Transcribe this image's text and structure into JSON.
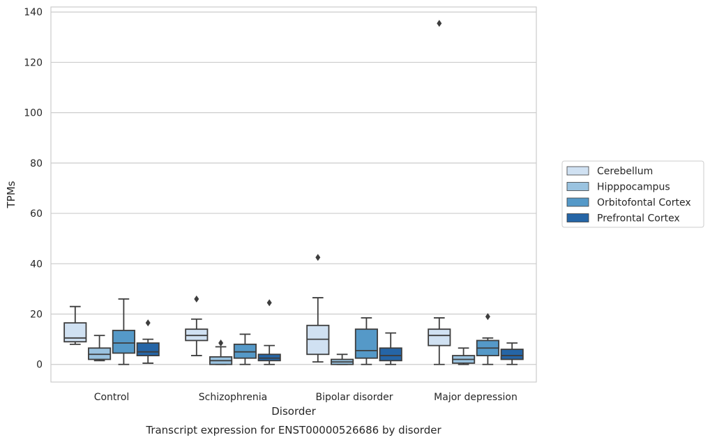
{
  "chart_data": {
    "type": "box",
    "title": "",
    "caption": "Transcript expression for ENST00000526686 by disorder",
    "xlabel": "Disorder",
    "ylabel": "TPMs",
    "ylim": [
      -7,
      142
    ],
    "yticks": [
      0,
      20,
      40,
      60,
      80,
      100,
      120,
      140
    ],
    "grid": "horizontal",
    "legend_position": "right",
    "categories": [
      "Control",
      "Schizophrenia",
      "Bipolar disorder",
      "Major depression"
    ],
    "series": [
      {
        "name": "Cerebellum",
        "color": "#d0e1f2",
        "boxes": [
          {
            "whisker_low": 8,
            "q1": 9,
            "median": 10.5,
            "q3": 16.5,
            "whisker_high": 23,
            "outliers": []
          },
          {
            "whisker_low": 3.5,
            "q1": 9.5,
            "median": 11.5,
            "q3": 14,
            "whisker_high": 18,
            "outliers": [
              26
            ]
          },
          {
            "whisker_low": 1,
            "q1": 4,
            "median": 10,
            "q3": 15.5,
            "whisker_high": 26.5,
            "outliers": [
              42.5
            ]
          },
          {
            "whisker_low": 0,
            "q1": 7.5,
            "median": 11.5,
            "q3": 14,
            "whisker_high": 18.5,
            "outliers": [
              135.5
            ]
          }
        ]
      },
      {
        "name": "Hipppocampus",
        "color": "#9ac3e0",
        "boxes": [
          {
            "whisker_low": 1.5,
            "q1": 2,
            "median": 4,
            "q3": 6.5,
            "whisker_high": 11.5,
            "outliers": []
          },
          {
            "whisker_low": 0,
            "q1": 0,
            "median": 1.5,
            "q3": 3,
            "whisker_high": 7,
            "outliers": [
              8.5
            ]
          },
          {
            "whisker_low": 0,
            "q1": 0,
            "median": 1,
            "q3": 2,
            "whisker_high": 4,
            "outliers": []
          },
          {
            "whisker_low": 0,
            "q1": 0.5,
            "median": 2,
            "q3": 3.5,
            "whisker_high": 6.5,
            "outliers": []
          }
        ]
      },
      {
        "name": "Orbitofontal Cortex",
        "color": "#5599c8",
        "boxes": [
          {
            "whisker_low": 0,
            "q1": 4.5,
            "median": 8.5,
            "q3": 13.5,
            "whisker_high": 26,
            "outliers": []
          },
          {
            "whisker_low": 0,
            "q1": 2.5,
            "median": 5,
            "q3": 8,
            "whisker_high": 12,
            "outliers": []
          },
          {
            "whisker_low": 0,
            "q1": 2.5,
            "median": 5.5,
            "q3": 14,
            "whisker_high": 18.5,
            "outliers": []
          },
          {
            "whisker_low": 0,
            "q1": 3.5,
            "median": 6.5,
            "q3": 9.5,
            "whisker_high": 10.5,
            "outliers": [
              19
            ]
          }
        ]
      },
      {
        "name": "Prefrontal Cortex",
        "color": "#2565a6",
        "boxes": [
          {
            "whisker_low": 0.5,
            "q1": 3.5,
            "median": 5,
            "q3": 8.5,
            "whisker_high": 10,
            "outliers": [
              16.5
            ]
          },
          {
            "whisker_low": 0,
            "q1": 1.5,
            "median": 2.5,
            "q3": 4,
            "whisker_high": 7.5,
            "outliers": [
              24.5
            ]
          },
          {
            "whisker_low": 0,
            "q1": 1.5,
            "median": 3.5,
            "q3": 6.5,
            "whisker_high": 12.5,
            "outliers": []
          },
          {
            "whisker_low": 0,
            "q1": 2,
            "median": 3.5,
            "q3": 6,
            "whisker_high": 8.5,
            "outliers": []
          }
        ]
      }
    ]
  }
}
